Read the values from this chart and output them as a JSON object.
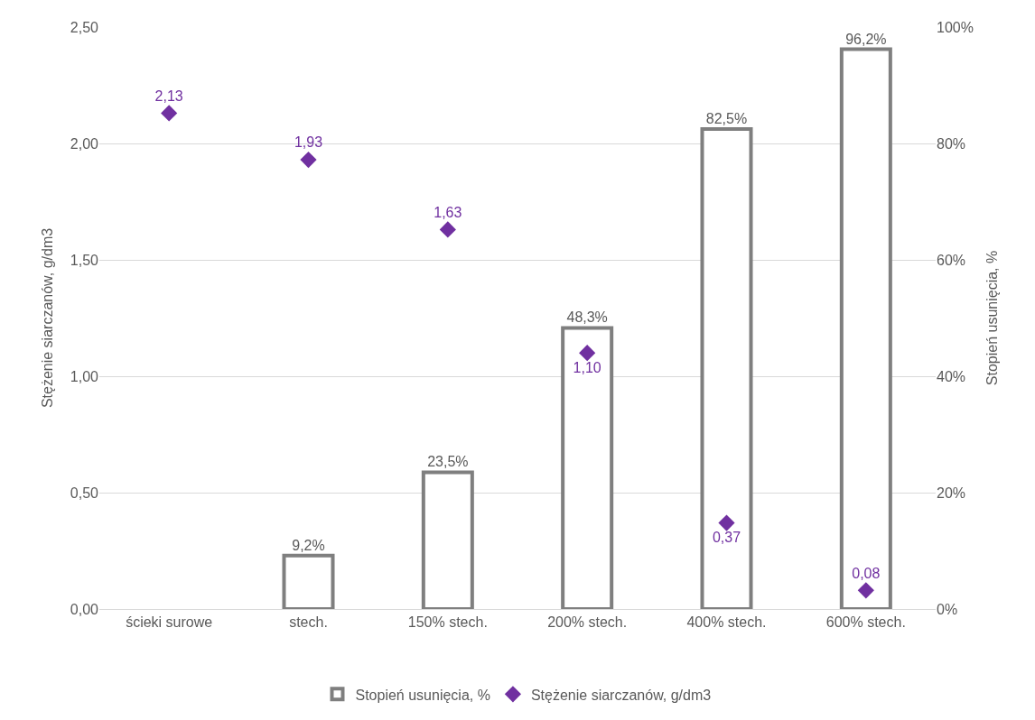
{
  "chart_data": {
    "type": "bar",
    "categories": [
      "ścieki surowe",
      "stech.",
      "150% stech.",
      "200% stech.",
      "400% stech.",
      "600% stech."
    ],
    "series": [
      {
        "name": "Stopień usunięcia, %",
        "axis": "y2",
        "color": "#7f7f7f",
        "values": [
          null,
          9.2,
          23.5,
          48.3,
          82.5,
          96.2
        ],
        "value_labels": [
          null,
          "9,2%",
          "23,5%",
          "48,3%",
          "82,5%",
          "96,2%"
        ]
      },
      {
        "name": "Stężenie siarczanów, g/dm3",
        "type": "scatter",
        "marker": "diamond",
        "color": "#7030a0",
        "values": [
          2.13,
          1.93,
          1.63,
          1.1,
          0.37,
          0.08
        ],
        "value_labels": [
          "2,13",
          "1,93",
          "1,63",
          "1,10",
          "0,37",
          "0,08"
        ]
      }
    ],
    "ylabel": "Stężenie siarczanów, g/dm3",
    "y2label": "Stopień usunięcia, %",
    "ylim": [
      0,
      2.5
    ],
    "yticks": [
      {
        "value": 0,
        "label": "0,00"
      },
      {
        "value": 0.5,
        "label": "0,50"
      },
      {
        "value": 1,
        "label": "1,00"
      },
      {
        "value": 1.5,
        "label": "1,50"
      },
      {
        "value": 2,
        "label": "2,00"
      },
      {
        "value": 2.5,
        "label": "2,50"
      }
    ],
    "y2lim": [
      0,
      100
    ],
    "y2ticks": [
      {
        "value": 0,
        "label": "0%"
      },
      {
        "value": 20,
        "label": "20%"
      },
      {
        "value": 40,
        "label": "40%"
      },
      {
        "value": 60,
        "label": "60%"
      },
      {
        "value": 80,
        "label": "80%"
      },
      {
        "value": 100,
        "label": "100%"
      }
    ],
    "grid": "y",
    "legend": "bottom"
  }
}
